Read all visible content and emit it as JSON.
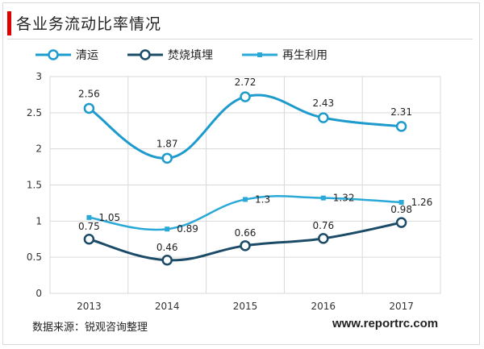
{
  "header": {
    "title": "各业务流动比率情况"
  },
  "footer": {
    "source": "数据来源：锐观咨询整理",
    "website": "www.reportrc.com"
  },
  "colors": {
    "qingyun": "#1e9bcd",
    "fenshao": "#1c4b68",
    "zaisheng": "#2aa9d8",
    "grid": "#d9d9d9",
    "accent": "#e00000"
  },
  "chart_data": {
    "type": "line",
    "title": "各业务流动比率情况",
    "categories": [
      "2013",
      "2014",
      "2015",
      "2016",
      "2017"
    ],
    "ylim": [
      0,
      3
    ],
    "yticks": [
      "0",
      "0.5",
      "1",
      "1.5",
      "2",
      "2.5",
      "3"
    ],
    "ytick_values": [
      0,
      0.5,
      1,
      1.5,
      2,
      2.5,
      3
    ],
    "grid": true,
    "legend_position": "top",
    "series": [
      {
        "name": "清运",
        "key": "qingyun",
        "marker": "hollow-circle",
        "values": [
          2.56,
          1.87,
          2.72,
          2.43,
          2.31
        ],
        "labels": [
          "2.56",
          "1.87",
          "2.72",
          "2.43",
          "2.31"
        ]
      },
      {
        "name": "焚烧填埋",
        "key": "fenshao",
        "marker": "hollow-circle",
        "values": [
          0.75,
          0.46,
          0.66,
          0.76,
          0.98
        ],
        "labels": [
          "0.75",
          "0.46",
          "0.66",
          "0.76",
          "0.98"
        ]
      },
      {
        "name": "再生利用",
        "key": "zaisheng",
        "marker": "square",
        "values": [
          1.05,
          0.89,
          1.3,
          1.32,
          1.26
        ],
        "labels": [
          "1.05",
          "0.89",
          "1.3",
          "1.32",
          "1.26"
        ]
      }
    ]
  }
}
